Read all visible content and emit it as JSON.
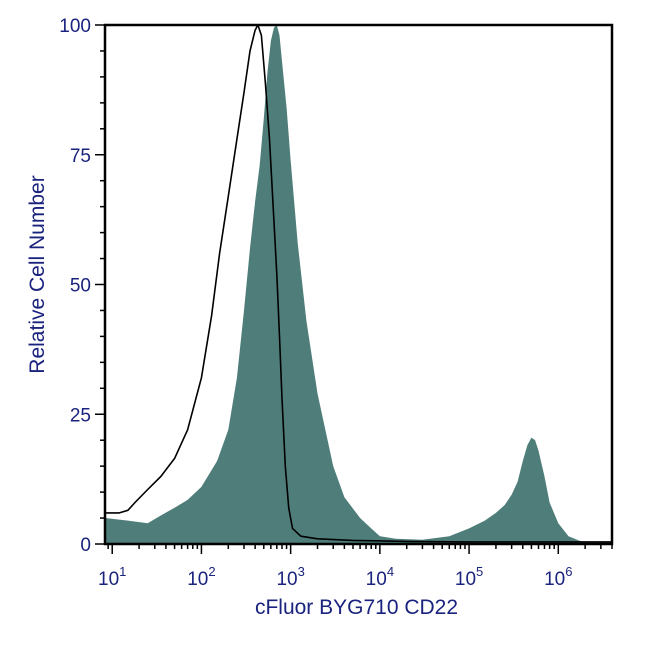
{
  "chart_data": {
    "type": "area",
    "xlabel": "cFluor BYG710 CD22",
    "ylabel": "Relative Cell Number",
    "x_scale": "log",
    "xlim": [
      8.3,
      4000000
    ],
    "ylim": [
      0,
      100
    ],
    "yticks": [
      0,
      25,
      50,
      75,
      100
    ],
    "xticks": [
      {
        "value": 10,
        "base": "10",
        "exp": "1"
      },
      {
        "value": 100,
        "base": "10",
        "exp": "2"
      },
      {
        "value": 1000,
        "base": "10",
        "exp": "3"
      },
      {
        "value": 10000,
        "base": "10",
        "exp": "4"
      },
      {
        "value": 100000,
        "base": "10",
        "exp": "5"
      },
      {
        "value": 1000000,
        "base": "10",
        "exp": "6"
      }
    ],
    "grid": false,
    "series": [
      {
        "role": "stained",
        "fill": "#4f7e7a",
        "points": [
          [
            8.3,
            5
          ],
          [
            15,
            4.5
          ],
          [
            25,
            4
          ],
          [
            35,
            5.5
          ],
          [
            50,
            7
          ],
          [
            70,
            8.5
          ],
          [
            100,
            11
          ],
          [
            150,
            16
          ],
          [
            200,
            22
          ],
          [
            250,
            32
          ],
          [
            300,
            45
          ],
          [
            350,
            57
          ],
          [
            400,
            66
          ],
          [
            450,
            73
          ],
          [
            500,
            82
          ],
          [
            550,
            91
          ],
          [
            600,
            97
          ],
          [
            650,
            99.5
          ],
          [
            700,
            100
          ],
          [
            750,
            98
          ],
          [
            800,
            93
          ],
          [
            900,
            84
          ],
          [
            1000,
            74
          ],
          [
            1200,
            58
          ],
          [
            1500,
            43
          ],
          [
            2000,
            29
          ],
          [
            3000,
            15
          ],
          [
            4000,
            9
          ],
          [
            6000,
            5
          ],
          [
            8000,
            3
          ],
          [
            10000,
            1.5
          ],
          [
            15000,
            1
          ],
          [
            30000,
            0.8
          ],
          [
            60000,
            1.5
          ],
          [
            100000,
            3
          ],
          [
            150000,
            4.5
          ],
          [
            200000,
            6
          ],
          [
            250000,
            7.5
          ],
          [
            300000,
            9.5
          ],
          [
            350000,
            12
          ],
          [
            400000,
            16
          ],
          [
            450000,
            19
          ],
          [
            500000,
            20.5
          ],
          [
            550000,
            20
          ],
          [
            600000,
            18
          ],
          [
            700000,
            13
          ],
          [
            800000,
            8
          ],
          [
            1000000,
            4
          ],
          [
            1300000,
            1.5
          ],
          [
            1800000,
            0.5
          ],
          [
            4000000,
            0.3
          ]
        ]
      },
      {
        "role": "control",
        "stroke": "#000000",
        "points": [
          [
            8.3,
            6
          ],
          [
            12,
            6
          ],
          [
            15,
            6.5
          ],
          [
            18,
            8
          ],
          [
            25,
            10.5
          ],
          [
            35,
            13
          ],
          [
            50,
            16.5
          ],
          [
            70,
            22
          ],
          [
            100,
            32
          ],
          [
            130,
            44
          ],
          [
            160,
            56
          ],
          [
            200,
            67
          ],
          [
            250,
            78
          ],
          [
            300,
            87
          ],
          [
            350,
            95
          ],
          [
            400,
            99
          ],
          [
            430,
            100
          ],
          [
            470,
            98
          ],
          [
            520,
            89
          ],
          [
            580,
            78
          ],
          [
            650,
            62
          ],
          [
            700,
            52
          ],
          [
            750,
            40
          ],
          [
            800,
            28
          ],
          [
            870,
            15
          ],
          [
            950,
            7
          ],
          [
            1050,
            3
          ],
          [
            1300,
            1.5
          ],
          [
            2000,
            1
          ],
          [
            5000,
            0.7
          ],
          [
            20000,
            0.5
          ],
          [
            100000,
            0.4
          ],
          [
            1000000,
            0.4
          ],
          [
            4000000,
            0.4
          ]
        ]
      }
    ]
  }
}
